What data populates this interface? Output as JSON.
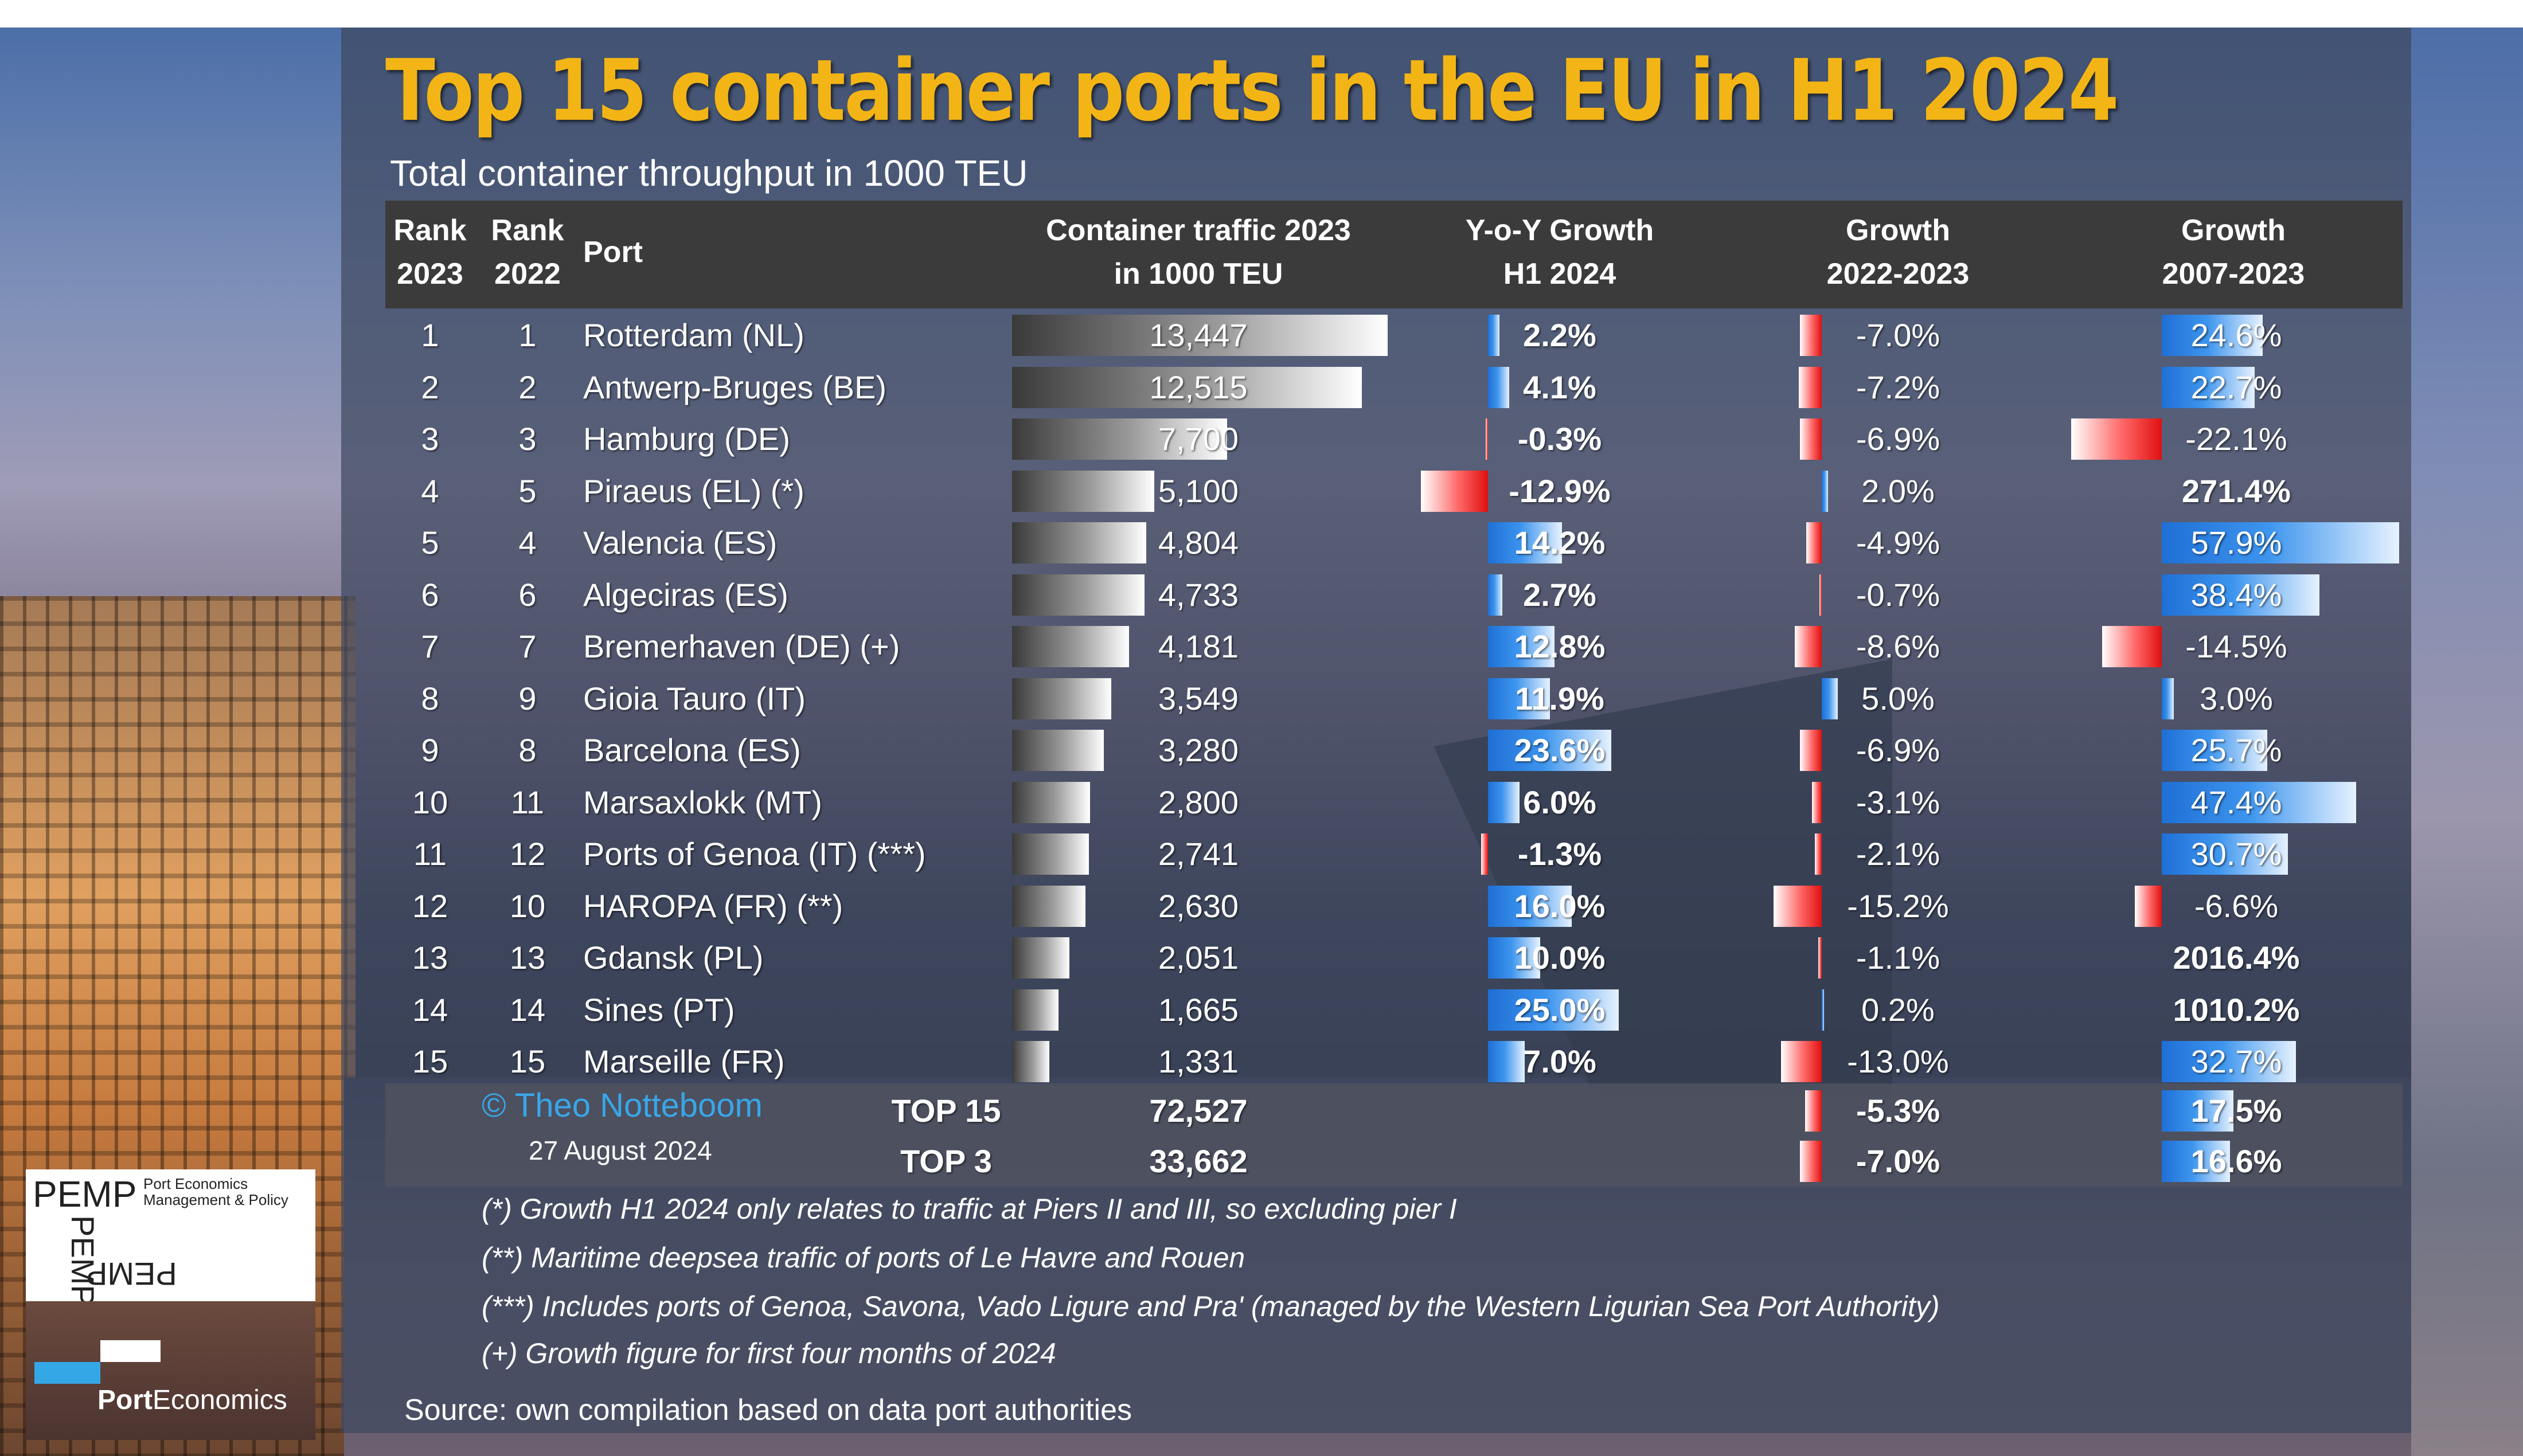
{
  "title": "Top 15 container ports in the EU in H1 2024",
  "subtitle": "Total container throughput in 1000 TEU",
  "headers": {
    "rank2023": [
      "Rank",
      "2023"
    ],
    "rank2022": [
      "Rank",
      "2022"
    ],
    "port": "Port",
    "traffic": [
      "Container traffic 2023",
      "in 1000 TEU"
    ],
    "yoy": [
      "Y-o-Y Growth",
      "H1 2024"
    ],
    "g2223": [
      "Growth",
      "2022-2023"
    ],
    "g0723": [
      "Growth",
      "2007-2023"
    ]
  },
  "chart_data": {
    "type": "table",
    "columns": [
      "Rank 2023",
      "Rank 2022",
      "Port",
      "Container traffic 2023 in 1000 TEU",
      "Y-o-Y Growth H1 2024",
      "Growth 2022-2023",
      "Growth 2007-2023"
    ],
    "rows": [
      {
        "rank2023": "1",
        "rank2022": "1",
        "port": "Rotterdam (NL)",
        "traffic": 13447,
        "traffic_label": "13,447",
        "yoy": 2.2,
        "yoy_label": "2.2%",
        "g2223": -7.0,
        "g2223_label": "-7.0%",
        "g0723": 24.6,
        "g0723_label": "24.6%"
      },
      {
        "rank2023": "2",
        "rank2022": "2",
        "port": "Antwerp-Bruges (BE)",
        "traffic": 12515,
        "traffic_label": "12,515",
        "yoy": 4.1,
        "yoy_label": "4.1%",
        "g2223": -7.2,
        "g2223_label": "-7.2%",
        "g0723": 22.7,
        "g0723_label": "22.7%"
      },
      {
        "rank2023": "3",
        "rank2022": "3",
        "port": "Hamburg (DE)",
        "traffic": 7700,
        "traffic_label": "7,700",
        "yoy": -0.3,
        "yoy_label": "-0.3%",
        "g2223": -6.9,
        "g2223_label": "-6.9%",
        "g0723": -22.1,
        "g0723_label": "-22.1%"
      },
      {
        "rank2023": "4",
        "rank2022": "5",
        "port": "Piraeus (EL) (*)",
        "traffic": 5100,
        "traffic_label": "5,100",
        "yoy": -12.9,
        "yoy_label": "-12.9%",
        "g2223": 2.0,
        "g2223_label": "2.0%",
        "g0723": 271.4,
        "g0723_label": "271.4%"
      },
      {
        "rank2023": "5",
        "rank2022": "4",
        "port": "Valencia (ES)",
        "traffic": 4804,
        "traffic_label": "4,804",
        "yoy": 14.2,
        "yoy_label": "14.2%",
        "g2223": -4.9,
        "g2223_label": "-4.9%",
        "g0723": 57.9,
        "g0723_label": "57.9%"
      },
      {
        "rank2023": "6",
        "rank2022": "6",
        "port": "Algeciras (ES)",
        "traffic": 4733,
        "traffic_label": "4,733",
        "yoy": 2.7,
        "yoy_label": "2.7%",
        "g2223": -0.7,
        "g2223_label": "-0.7%",
        "g0723": 38.4,
        "g0723_label": "38.4%"
      },
      {
        "rank2023": "7",
        "rank2022": "7",
        "port": "Bremerhaven (DE) (+)",
        "traffic": 4181,
        "traffic_label": "4,181",
        "yoy": 12.8,
        "yoy_label": "12.8%",
        "g2223": -8.6,
        "g2223_label": "-8.6%",
        "g0723": -14.5,
        "g0723_label": "-14.5%"
      },
      {
        "rank2023": "8",
        "rank2022": "9",
        "port": "Gioia Tauro (IT)",
        "traffic": 3549,
        "traffic_label": "3,549",
        "yoy": 11.9,
        "yoy_label": "11.9%",
        "g2223": 5.0,
        "g2223_label": "5.0%",
        "g0723": 3.0,
        "g0723_label": "3.0%"
      },
      {
        "rank2023": "9",
        "rank2022": "8",
        "port": "Barcelona (ES)",
        "traffic": 3280,
        "traffic_label": "3,280",
        "yoy": 23.6,
        "yoy_label": "23.6%",
        "g2223": -6.9,
        "g2223_label": "-6.9%",
        "g0723": 25.7,
        "g0723_label": "25.7%"
      },
      {
        "rank2023": "10",
        "rank2022": "11",
        "port": "Marsaxlokk (MT)",
        "traffic": 2800,
        "traffic_label": "2,800",
        "yoy": 6.0,
        "yoy_label": "6.0%",
        "g2223": -3.1,
        "g2223_label": "-3.1%",
        "g0723": 47.4,
        "g0723_label": "47.4%"
      },
      {
        "rank2023": "11",
        "rank2022": "12",
        "port": "Ports of Genoa (IT) (***)",
        "traffic": 2741,
        "traffic_label": "2,741",
        "yoy": -1.3,
        "yoy_label": "-1.3%",
        "g2223": -2.1,
        "g2223_label": "-2.1%",
        "g0723": 30.7,
        "g0723_label": "30.7%"
      },
      {
        "rank2023": "12",
        "rank2022": "10",
        "port": "HAROPA (FR) (**)",
        "traffic": 2630,
        "traffic_label": "2,630",
        "yoy": 16.0,
        "yoy_label": "16.0%",
        "g2223": -15.2,
        "g2223_label": "-15.2%",
        "g0723": -6.6,
        "g0723_label": "-6.6%"
      },
      {
        "rank2023": "13",
        "rank2022": "13",
        "port": "Gdansk (PL)",
        "traffic": 2051,
        "traffic_label": "2,051",
        "yoy": 10.0,
        "yoy_label": "10.0%",
        "g2223": -1.1,
        "g2223_label": "-1.1%",
        "g0723": 2016.4,
        "g0723_label": "2016.4%"
      },
      {
        "rank2023": "14",
        "rank2022": "14",
        "port": "Sines (PT)",
        "traffic": 1665,
        "traffic_label": "1,665",
        "yoy": 25.0,
        "yoy_label": "25.0%",
        "g2223": 0.2,
        "g2223_label": "0.2%",
        "g0723": 1010.2,
        "g0723_label": "1010.2%"
      },
      {
        "rank2023": "15",
        "rank2022": "15",
        "port": "Marseille (FR)",
        "traffic": 1331,
        "traffic_label": "1,331",
        "yoy": 7.0,
        "yoy_label": "7.0%",
        "g2223": -13.0,
        "g2223_label": "-13.0%",
        "g0723": 32.7,
        "g0723_label": "32.7%"
      }
    ],
    "totals": [
      {
        "label": "TOP 15",
        "traffic_label": "72,527",
        "g2223": -5.3,
        "g2223_label": "-5.3%",
        "g0723": 17.5,
        "g0723_label": "17.5%"
      },
      {
        "label": "TOP 3",
        "traffic_label": "33,662",
        "g2223": -7.0,
        "g2223_label": "-7.0%",
        "g0723": 16.6,
        "g0723_label": "16.6%"
      }
    ]
  },
  "credit": {
    "copyright": "© Theo Notteboom",
    "date": "27 August 2024"
  },
  "notes": [
    "(*) Growth H1 2024 only relates to traffic at Piers II and III, so excluding pier I",
    "(**) Maritime deepsea traffic of ports of Le Havre and Rouen",
    "(***) Includes ports of Genoa, Savona, Vado Ligure and Pra' (managed by the Western Ligurian Sea Port Authority)",
    "(+) Growth figure for first four months of 2024"
  ],
  "source": "Source: own compilation based on data port authorities",
  "logo": {
    "pemp_word": "PEMP",
    "pemp_tagline": [
      "Port Economics",
      "Management & Policy"
    ],
    "pe_bold": "Port",
    "pe_rest": "Economics"
  },
  "colors": {
    "title": "#f3b515",
    "positive_bar": "#1f6fd6",
    "negative_bar": "#e01010",
    "traffic_bar": "#ffffff",
    "copyright": "#39a6e8"
  }
}
